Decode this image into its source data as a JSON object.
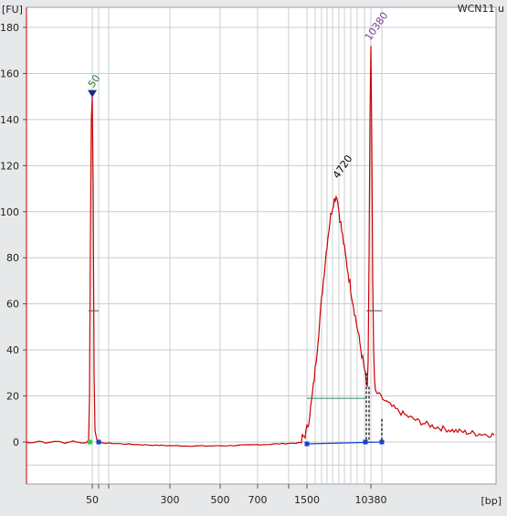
{
  "chart_data": {
    "type": "line",
    "title": "WCN11 u",
    "ylabel": "[FU]",
    "xlabel": "[bp]",
    "ylim": [
      -18,
      185
    ],
    "y_ticks": [
      0,
      20,
      40,
      60,
      80,
      100,
      120,
      140,
      160,
      180
    ],
    "x_tick_labels": [
      "50",
      "300",
      "500",
      "700",
      "1500",
      "10380"
    ],
    "grid": true,
    "series_color": "#cc0000",
    "peaks": [
      {
        "label": "50",
        "size_bp": 50,
        "height_fu": 150,
        "label_color": "#2e7d32",
        "marker": "triangle"
      },
      {
        "label": "4720",
        "size_bp": 4720,
        "height_fu": 107,
        "label_color": "#000000"
      },
      {
        "label": "10380",
        "size_bp": 10380,
        "height_fu": 172,
        "label_color": "#7b3fa0"
      }
    ],
    "region": {
      "start_bp": 1500,
      "end_bp": 10380,
      "line_fu": 19
    }
  }
}
